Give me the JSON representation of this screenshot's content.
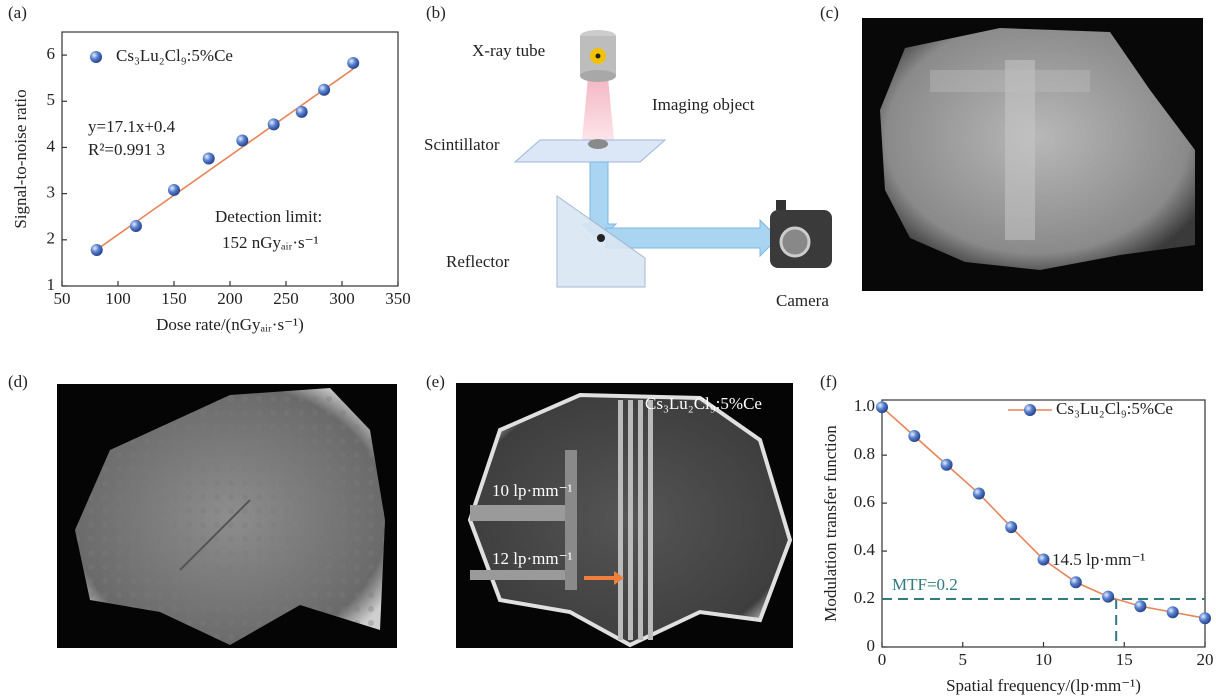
{
  "panels": {
    "a": "(a)",
    "b": "(b)",
    "c": "(c)",
    "d": "(d)",
    "e": "(e)",
    "f": "(f)"
  },
  "chart_data": [
    {
      "type": "scatter",
      "xlabel": "Dose rate/(nGyₐᵢᵣ·s⁻¹)",
      "ylabel": "Signal-to-noise ratio",
      "series": [
        {
          "name": "Cs₃Lu₂Cl₉:5%Ce",
          "color": "#3a5fb0",
          "x": [
            81,
            116,
            150,
            181,
            211,
            239,
            264,
            284,
            310
          ],
          "values": [
            1.78,
            2.3,
            3.08,
            3.76,
            4.15,
            4.5,
            4.77,
            5.25,
            5.83
          ]
        }
      ],
      "fit_line": {
        "color": "#e8845a",
        "x": [
          80,
          310
        ],
        "y": [
          1.77,
          5.7
        ]
      },
      "annotations": [
        "y=17.1x+0.4",
        "R²=0.991 3",
        "Detection limit:",
        "152 nGyₐᵢᵣ·s⁻¹"
      ],
      "xlim": [
        50,
        350
      ],
      "xticks": [
        50,
        100,
        150,
        200,
        250,
        300,
        350
      ],
      "ylim": [
        1,
        6.5
      ],
      "yticks": [
        1,
        2,
        3,
        4,
        5,
        6
      ]
    },
    {
      "type": "line",
      "xlabel": "Spatial frequency/(lp·mm⁻¹)",
      "ylabel": "Modulation transfer function",
      "series": [
        {
          "name": "Cs₃Lu₂Cl₉:5%Ce",
          "color": "#e8845a",
          "x": [
            0,
            2,
            4,
            6,
            8,
            10,
            12,
            14,
            16,
            18,
            20
          ],
          "values": [
            1.0,
            0.88,
            0.76,
            0.64,
            0.5,
            0.365,
            0.27,
            0.21,
            0.17,
            0.145,
            0.12
          ]
        }
      ],
      "reference": {
        "x": 14.5,
        "y": 0.2,
        "color": "#2e7b84"
      },
      "annotations": [
        "MTF=0.2",
        "14.5 lp·mm⁻¹"
      ],
      "xlim": [
        0,
        20
      ],
      "xticks": [
        0,
        5,
        10,
        15,
        20
      ],
      "ylim": [
        0,
        1.03
      ],
      "yticks": [
        0,
        0.2,
        0.4,
        0.6,
        0.8,
        {
          "value": 1,
          "label": "1.0"
        }
      ]
    }
  ],
  "diagram": {
    "labels": [
      "X-ray tube",
      "Imaging object",
      "Scintillator",
      "Reflector",
      "Camera"
    ]
  },
  "image_e": {
    "labels": [
      "Cs₃Lu₂Cl₉:5%Ce",
      "10 lp·mm⁻¹",
      "12 lp·mm⁻¹"
    ]
  }
}
